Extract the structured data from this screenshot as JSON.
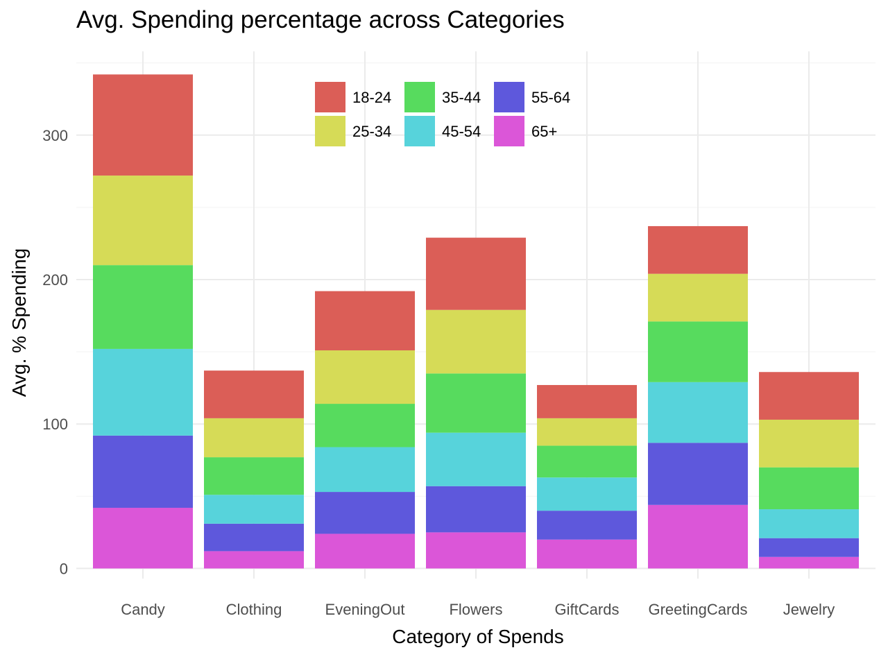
{
  "chart_data": {
    "type": "bar",
    "stacked": true,
    "title": "Avg. Spending percentage across Categories",
    "xlabel": "Category of Spends",
    "ylabel": "Avg. % Spending",
    "categories": [
      "Candy",
      "Clothing",
      "EveningOut",
      "Flowers",
      "GiftCards",
      "GreetingCards",
      "Jewelry"
    ],
    "y_ticks": [
      0,
      100,
      200,
      300
    ],
    "y_tick_labels": [
      "0",
      "100",
      "200",
      "300"
    ],
    "ylim": [
      -7,
      358
    ],
    "grid": true,
    "legend_position": "top-center",
    "series": [
      {
        "name": "65+",
        "color": "#db56d8",
        "values": [
          42,
          12,
          24,
          25,
          20,
          44,
          8
        ]
      },
      {
        "name": "55-64",
        "color": "#5e58dc",
        "values": [
          50,
          19,
          29,
          32,
          20,
          43,
          13
        ]
      },
      {
        "name": "45-54",
        "color": "#57d3db",
        "values": [
          60,
          20,
          31,
          37,
          23,
          42,
          20
        ]
      },
      {
        "name": "35-44",
        "color": "#57db5e",
        "values": [
          58,
          26,
          30,
          41,
          22,
          42,
          29
        ]
      },
      {
        "name": "25-34",
        "color": "#d6db57",
        "values": [
          62,
          27,
          37,
          44,
          19,
          33,
          33
        ]
      },
      {
        "name": "18-24",
        "color": "#db5e57",
        "values": [
          70,
          33,
          41,
          50,
          23,
          33,
          33
        ]
      }
    ],
    "legend_order": [
      "18-24",
      "25-34",
      "35-44",
      "45-54",
      "55-64",
      "65+"
    ]
  }
}
